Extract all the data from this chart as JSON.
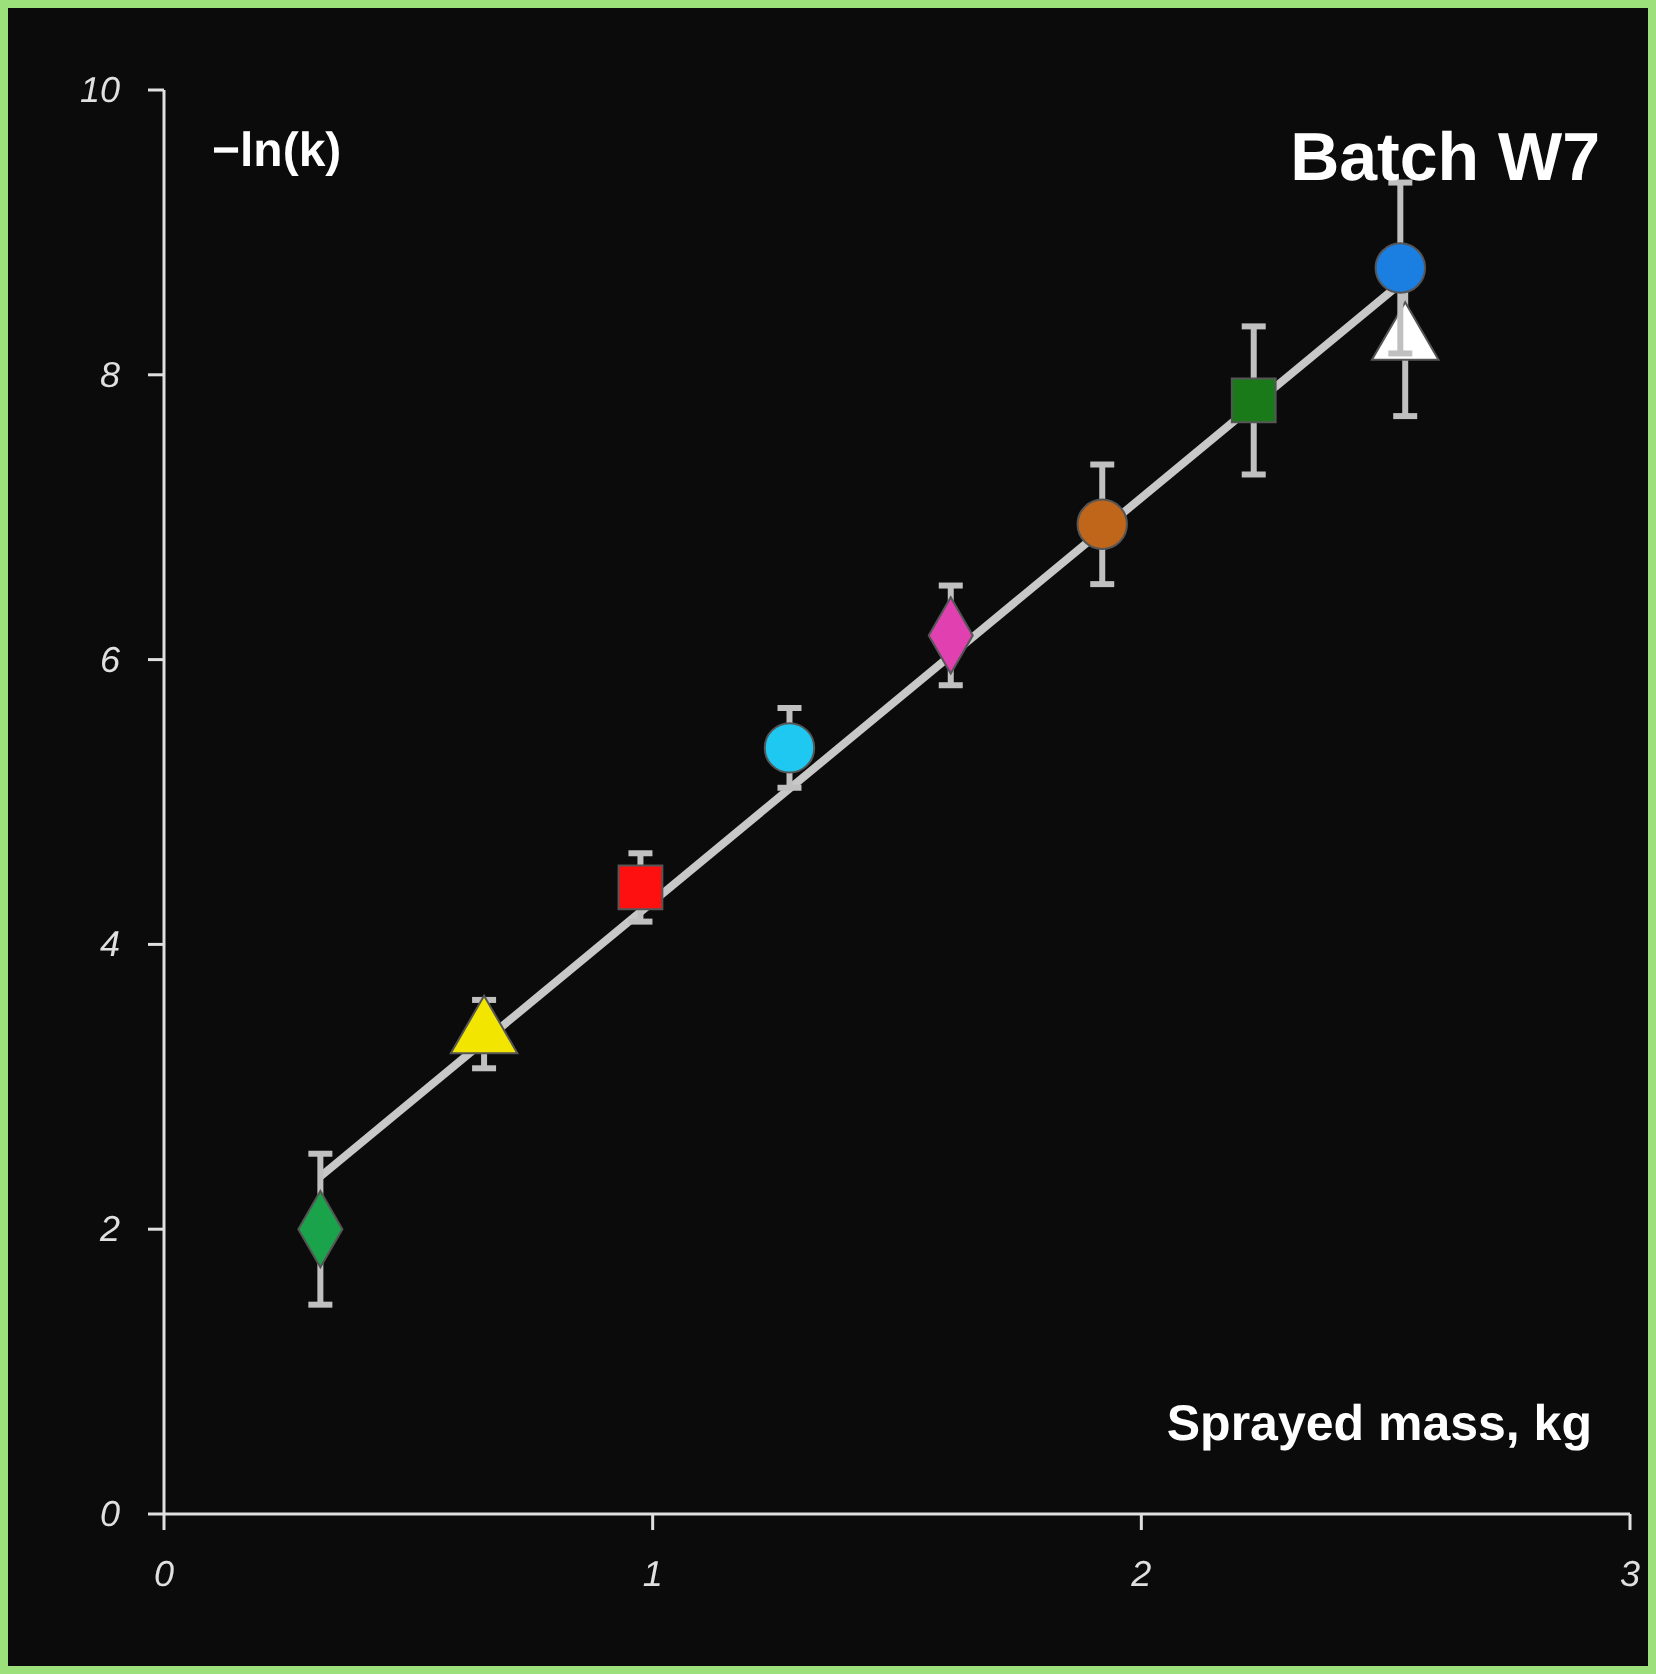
{
  "chart_data": {
    "type": "scatter",
    "title": "Batch W7",
    "xlabel": "Sprayed mass, kg",
    "ylabel": "−ln(k)",
    "xlim": [
      0,
      3
    ],
    "xticks": [
      0,
      1,
      2,
      3
    ],
    "ylim": [
      0,
      10
    ],
    "yticks": [
      0,
      2,
      4,
      6,
      8,
      10
    ],
    "grid": false,
    "series": [
      {
        "type": "line",
        "color": "#c8c8c8",
        "x": [
          0.32,
          2.53
        ],
        "values": [
          2.37,
          8.64
        ],
        "line_style": "solid"
      },
      {
        "color": "#1aa34a",
        "marker": "diamond",
        "x": [
          0.32
        ],
        "values": [
          2.0
        ],
        "errors": [
          0.53
        ]
      },
      {
        "color": "#f2e600",
        "marker": "triangle",
        "x": [
          0.655
        ],
        "values": [
          3.37
        ],
        "errors": [
          0.24
        ]
      },
      {
        "color": "#ff1010",
        "marker": "square",
        "x": [
          0.975
        ],
        "values": [
          4.4
        ],
        "errors": [
          0.24
        ]
      },
      {
        "color": "#1ec8f0",
        "marker": "circle",
        "x": [
          1.28
        ],
        "values": [
          5.38
        ],
        "errors": [
          0.28
        ]
      },
      {
        "color": "#e040b0",
        "marker": "diamond",
        "x": [
          1.61
        ],
        "values": [
          6.17
        ],
        "errors": [
          0.35
        ]
      },
      {
        "color": "#c0661a",
        "marker": "circle",
        "x": [
          1.92
        ],
        "values": [
          6.95
        ],
        "errors": [
          0.42
        ]
      },
      {
        "color": "#1a7a1a",
        "marker": "square",
        "x": [
          2.23
        ],
        "values": [
          7.82
        ],
        "errors": [
          0.52
        ]
      },
      {
        "color": "#ffffff",
        "marker": "triangle",
        "x": [
          2.54
        ],
        "values": [
          8.24
        ],
        "errors": [
          0.53
        ]
      },
      {
        "color": "#1a7fe0",
        "marker": "circle",
        "x": [
          2.53
        ],
        "values": [
          8.75
        ],
        "errors": [
          0.6
        ]
      }
    ]
  }
}
